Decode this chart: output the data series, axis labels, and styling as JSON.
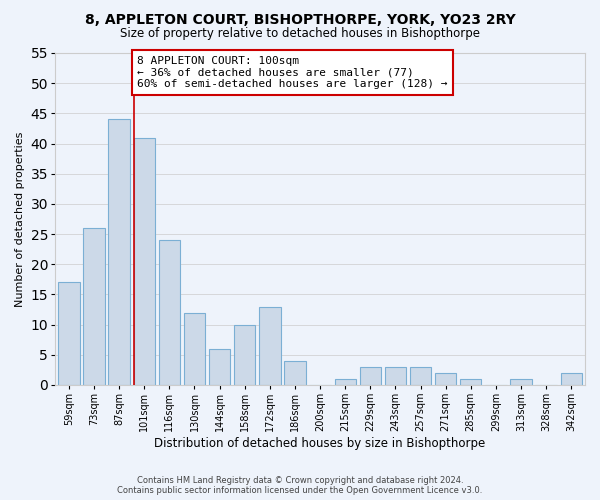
{
  "title": "8, APPLETON COURT, BISHOPTHORPE, YORK, YO23 2RY",
  "subtitle": "Size of property relative to detached houses in Bishopthorpe",
  "xlabel": "Distribution of detached houses by size in Bishopthorpe",
  "ylabel": "Number of detached properties",
  "footer_line1": "Contains HM Land Registry data © Crown copyright and database right 2024.",
  "footer_line2": "Contains public sector information licensed under the Open Government Licence v3.0.",
  "bar_labels": [
    "59sqm",
    "73sqm",
    "87sqm",
    "101sqm",
    "116sqm",
    "130sqm",
    "144sqm",
    "158sqm",
    "172sqm",
    "186sqm",
    "200sqm",
    "215sqm",
    "229sqm",
    "243sqm",
    "257sqm",
    "271sqm",
    "285sqm",
    "299sqm",
    "313sqm",
    "328sqm",
    "342sqm"
  ],
  "bar_values": [
    17,
    26,
    44,
    41,
    24,
    12,
    6,
    10,
    13,
    4,
    0,
    1,
    3,
    3,
    3,
    2,
    1,
    0,
    1,
    0,
    2
  ],
  "bar_color": "#ccd9e8",
  "bar_edge_color": "#7bafd4",
  "grid_color": "#cccccc",
  "annotation_line_x_label": "101sqm",
  "annotation_line_color": "#cc0000",
  "annotation_box_text": "8 APPLETON COURT: 100sqm\n← 36% of detached houses are smaller (77)\n60% of semi-detached houses are larger (128) →",
  "annotation_box_edge_color": "#cc0000",
  "annotation_box_facecolor": "white",
  "ylim": [
    0,
    55
  ],
  "yticks": [
    0,
    5,
    10,
    15,
    20,
    25,
    30,
    35,
    40,
    45,
    50,
    55
  ],
  "background_color": "#eef3fb"
}
